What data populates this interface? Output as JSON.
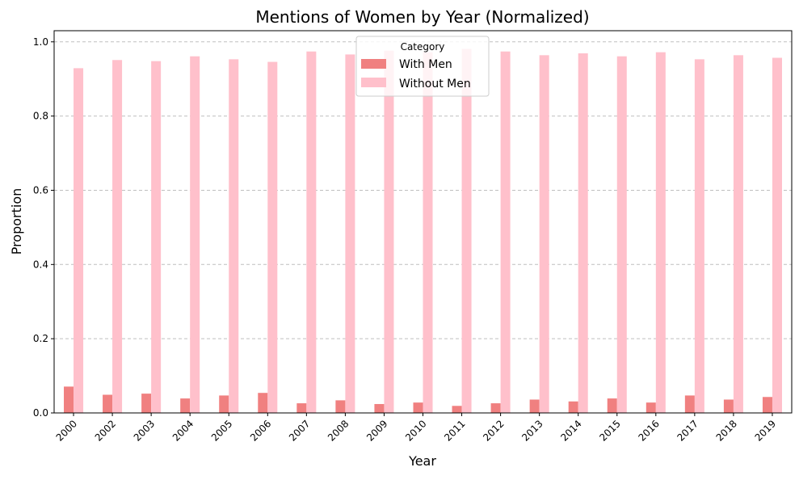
{
  "chart_data": {
    "type": "bar",
    "title": "Mentions of Women by Year (Normalized)",
    "xlabel": "Year",
    "ylabel": "Proportion",
    "ylim": [
      0,
      1.03
    ],
    "yticks": [
      "0.0",
      "0.2",
      "0.4",
      "0.6",
      "0.8",
      "1.0"
    ],
    "grid": "horizontal dashed",
    "legend_placement": "top-center",
    "legend_title": "Category",
    "categories": [
      "2000",
      "2002",
      "2003",
      "2004",
      "2005",
      "2006",
      "2007",
      "2008",
      "2009",
      "2010",
      "2011",
      "2012",
      "2013",
      "2014",
      "2015",
      "2016",
      "2017",
      "2018",
      "2019"
    ],
    "series": [
      {
        "name": "With Men",
        "color": "#f08080",
        "values": [
          0.071,
          0.049,
          0.052,
          0.039,
          0.047,
          0.054,
          0.026,
          0.034,
          0.024,
          0.028,
          0.019,
          0.026,
          0.036,
          0.031,
          0.039,
          0.028,
          0.047,
          0.036,
          0.043
        ]
      },
      {
        "name": "Without Men",
        "color": "#ffc0cb",
        "values": [
          0.929,
          0.951,
          0.948,
          0.961,
          0.953,
          0.946,
          0.974,
          0.966,
          0.976,
          0.972,
          0.981,
          0.974,
          0.964,
          0.969,
          0.961,
          0.972,
          0.953,
          0.964,
          0.957
        ]
      }
    ]
  }
}
